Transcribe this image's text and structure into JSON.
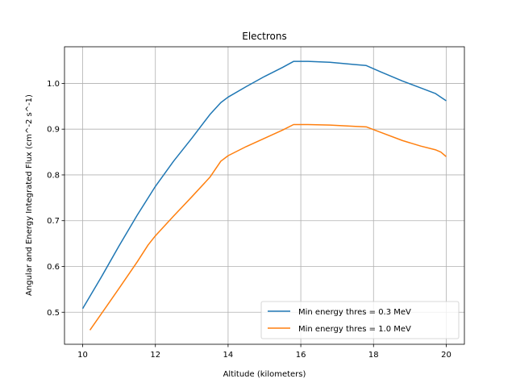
{
  "chart_data": {
    "type": "line",
    "title": "Electrons",
    "xlabel": "Altitude (kilometers)",
    "ylabel": "Angular and Energy Integrated Flux (cm^-2 s^-1)",
    "xlim": [
      9.5,
      20.5
    ],
    "ylim": [
      0.43,
      1.08
    ],
    "xticks": [
      10,
      12,
      14,
      16,
      18,
      20
    ],
    "yticks": [
      0.5,
      0.6,
      0.7,
      0.8,
      0.9,
      1.0
    ],
    "xtick_labels": [
      "10",
      "12",
      "14",
      "16",
      "18",
      "20"
    ],
    "ytick_labels": [
      "0.5",
      "0.6",
      "0.7",
      "0.8",
      "0.9",
      "1.0"
    ],
    "grid": true,
    "legend": "lower-right",
    "series": [
      {
        "name": "Min energy thres = 0.3 MeV",
        "color": "#1f77b4",
        "x": [
          10.0,
          10.5,
          11.0,
          11.5,
          12.0,
          12.5,
          13.0,
          13.5,
          13.8,
          14.0,
          14.5,
          15.0,
          15.5,
          15.8,
          16.2,
          16.8,
          17.5,
          17.8,
          18.2,
          18.8,
          19.3,
          19.7,
          19.85,
          20.0
        ],
        "y": [
          0.508,
          0.575,
          0.645,
          0.712,
          0.775,
          0.83,
          0.88,
          0.932,
          0.958,
          0.97,
          0.993,
          1.015,
          1.035,
          1.048,
          1.048,
          1.046,
          1.041,
          1.039,
          1.025,
          1.005,
          0.99,
          0.978,
          0.97,
          0.962
        ]
      },
      {
        "name": "Min energy thres = 1.0 MeV",
        "color": "#ff7f0e",
        "x": [
          10.2,
          10.5,
          11.0,
          11.5,
          11.8,
          12.0,
          12.5,
          13.0,
          13.5,
          13.8,
          14.0,
          14.5,
          15.0,
          15.5,
          15.8,
          16.2,
          16.8,
          17.5,
          17.8,
          18.2,
          18.8,
          19.3,
          19.7,
          19.85,
          20.0
        ],
        "y": [
          0.461,
          0.495,
          0.552,
          0.61,
          0.647,
          0.667,
          0.71,
          0.752,
          0.795,
          0.83,
          0.842,
          0.862,
          0.88,
          0.898,
          0.91,
          0.91,
          0.909,
          0.906,
          0.905,
          0.893,
          0.875,
          0.863,
          0.855,
          0.85,
          0.84
        ]
      }
    ]
  }
}
